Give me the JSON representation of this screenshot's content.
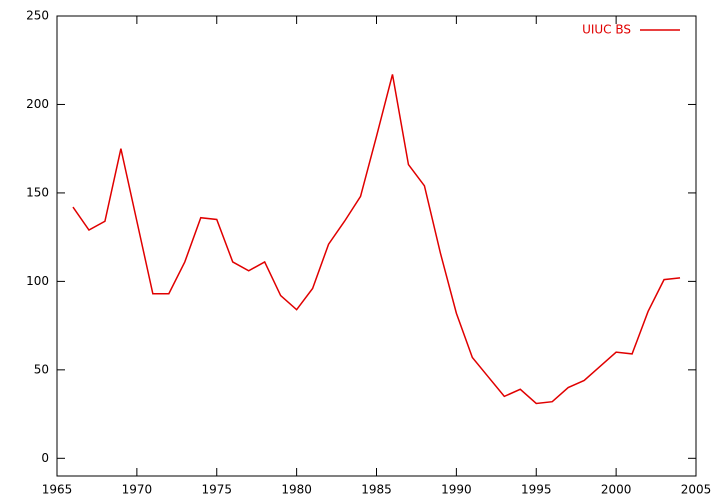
{
  "chart_data": {
    "type": "line",
    "x": [
      1966,
      1967,
      1968,
      1969,
      1970,
      1971,
      1972,
      1973,
      1974,
      1975,
      1976,
      1977,
      1978,
      1979,
      1980,
      1981,
      1982,
      1983,
      1984,
      1985,
      1986,
      1987,
      1988,
      1989,
      1990,
      1991,
      1992,
      1993,
      1994,
      1995,
      1996,
      1997,
      1998,
      1999,
      2000,
      2001,
      2002,
      2003,
      2004
    ],
    "series": [
      {
        "name": "UIUC BS",
        "color": "#e00000",
        "values": [
          142,
          129,
          134,
          175,
          134,
          93,
          93,
          111,
          136,
          135,
          111,
          106,
          111,
          92,
          84,
          96,
          121,
          134,
          148,
          182,
          217,
          166,
          154,
          116,
          82,
          57,
          46,
          35,
          39,
          31,
          32,
          40,
          44,
          52,
          60,
          59,
          83,
          101,
          102
        ]
      }
    ],
    "xlim": [
      1965,
      2005
    ],
    "xticks": [
      1965,
      1970,
      1975,
      1980,
      1985,
      1990,
      1995,
      2000,
      2005
    ],
    "ylim": [
      -10,
      250
    ],
    "yticks": [
      0,
      50,
      100,
      150,
      200,
      250
    ],
    "legend": "top-right"
  }
}
